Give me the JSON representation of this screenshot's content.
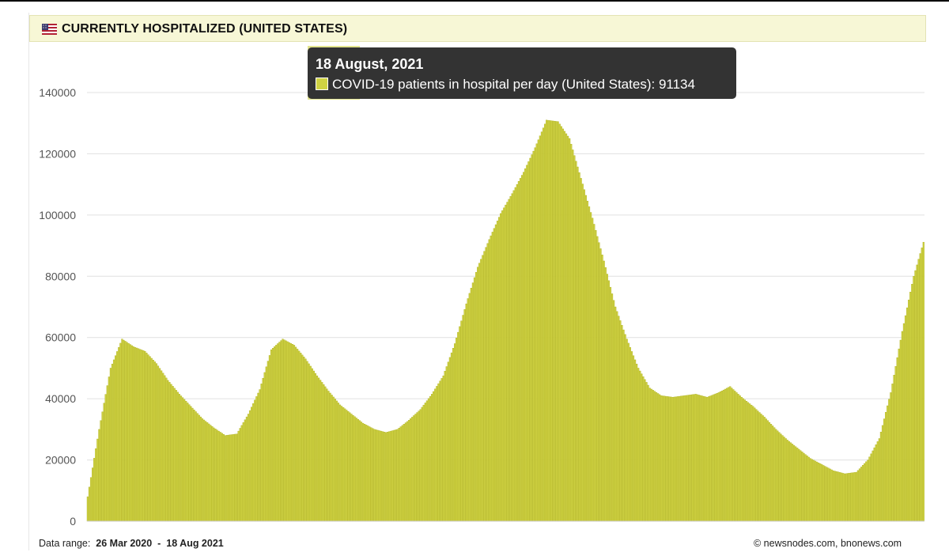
{
  "header": {
    "title": "CURRENTLY HOSPITALIZED (UNITED STATES)",
    "flag_icon": "us-flag-icon"
  },
  "tooltip": {
    "date": "18 August, 2021",
    "series_label": "COVID-19 patients in hospital per day (United States)",
    "value": "91134"
  },
  "footer": {
    "range_label": "Data range:",
    "range_start": "26 Mar 2020",
    "range_sep": "-",
    "range_end": "18 Aug 2021",
    "copyright": "©  newsnodes.com, bnonews.com"
  },
  "colors": {
    "bar": "#cfd243",
    "bar_edge": "#aeb01c",
    "grid": "#e0e0e0",
    "axis_text": "#555555"
  },
  "chart_data": {
    "type": "bar",
    "x_start": "2020-03-26",
    "x_end": "2021-08-18",
    "ylim": [
      0,
      140000
    ],
    "yticks": [
      0,
      20000,
      40000,
      60000,
      80000,
      100000,
      120000,
      140000
    ],
    "grid": true,
    "highlighted": {
      "date": "2021-08-18",
      "value": 91134
    },
    "series": [
      {
        "name": "COVID-19 patients in hospital per day (United States)",
        "x": [
          "2020-03-26",
          "2020-04-02",
          "2020-04-09",
          "2020-04-16",
          "2020-04-23",
          "2020-04-30",
          "2020-05-07",
          "2020-05-14",
          "2020-05-21",
          "2020-05-28",
          "2020-06-04",
          "2020-06-11",
          "2020-06-18",
          "2020-06-25",
          "2020-07-02",
          "2020-07-09",
          "2020-07-16",
          "2020-07-23",
          "2020-07-30",
          "2020-08-06",
          "2020-08-13",
          "2020-08-20",
          "2020-08-27",
          "2020-09-03",
          "2020-09-10",
          "2020-09-17",
          "2020-09-24",
          "2020-10-01",
          "2020-10-08",
          "2020-10-15",
          "2020-10-22",
          "2020-10-29",
          "2020-11-05",
          "2020-11-12",
          "2020-11-19",
          "2020-11-26",
          "2020-12-03",
          "2020-12-10",
          "2020-12-17",
          "2020-12-24",
          "2020-12-31",
          "2021-01-07",
          "2021-01-14",
          "2021-01-21",
          "2021-01-28",
          "2021-02-04",
          "2021-02-11",
          "2021-02-18",
          "2021-02-25",
          "2021-03-04",
          "2021-03-11",
          "2021-03-18",
          "2021-03-25",
          "2021-04-01",
          "2021-04-08",
          "2021-04-15",
          "2021-04-22",
          "2021-04-29",
          "2021-05-06",
          "2021-05-13",
          "2021-05-20",
          "2021-05-27",
          "2021-06-03",
          "2021-06-10",
          "2021-06-17",
          "2021-06-24",
          "2021-07-01",
          "2021-07-08",
          "2021-07-15",
          "2021-07-22",
          "2021-07-29",
          "2021-08-05",
          "2021-08-12",
          "2021-08-18"
        ],
        "values": [
          8000,
          30000,
          50000,
          59500,
          57000,
          55500,
          51500,
          46000,
          41500,
          37500,
          33500,
          30500,
          28000,
          28500,
          35000,
          43000,
          56000,
          59500,
          57500,
          53000,
          47500,
          42500,
          38000,
          35000,
          32000,
          30000,
          29000,
          30000,
          33000,
          36500,
          41500,
          47500,
          58000,
          71000,
          83000,
          92000,
          100500,
          107000,
          114000,
          122000,
          131000,
          130500,
          125000,
          112000,
          99000,
          85000,
          70000,
          59500,
          50000,
          43500,
          41000,
          40500,
          41000,
          41500,
          40500,
          42000,
          44000,
          40500,
          37500,
          34000,
          30000,
          26500,
          23500,
          20500,
          18500,
          16500,
          15500,
          16000,
          20000,
          27000,
          42000,
          62000,
          80000,
          91134
        ]
      }
    ]
  }
}
